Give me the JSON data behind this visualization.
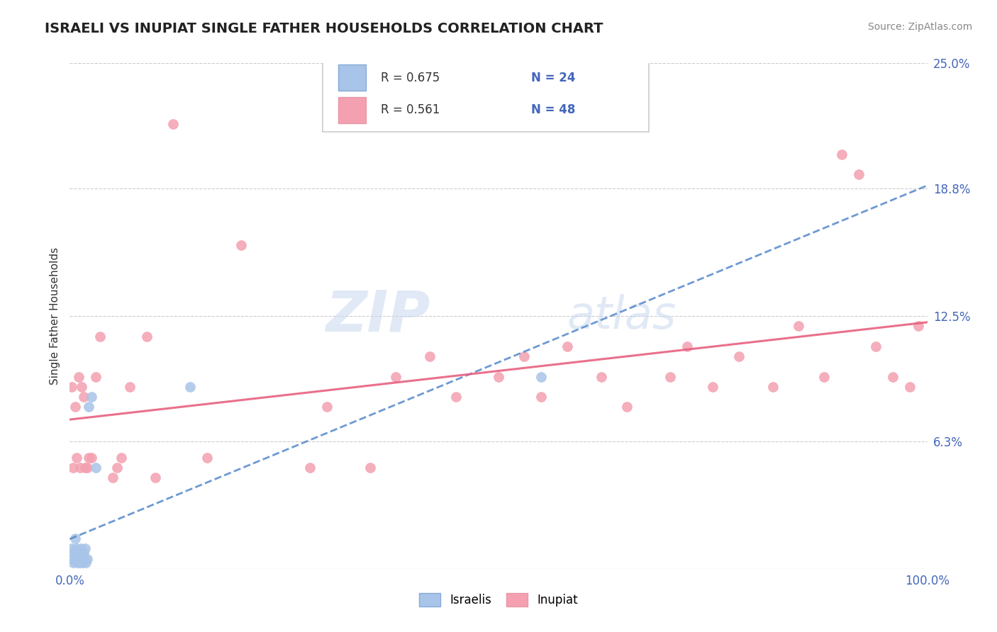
{
  "title": "ISRAELI VS INUPIAT SINGLE FATHER HOUSEHOLDS CORRELATION CHART",
  "source": "Source: ZipAtlas.com",
  "ylabel": "Single Father Households",
  "xlim": [
    0,
    100
  ],
  "ylim": [
    0,
    25
  ],
  "ytick_vals": [
    0,
    6.3,
    12.5,
    18.8,
    25.0
  ],
  "ytick_labels": [
    "",
    "6.3%",
    "12.5%",
    "18.8%",
    "25.0%"
  ],
  "xtick_vals": [
    0,
    100
  ],
  "xtick_labels": [
    "0.0%",
    "100.0%"
  ],
  "legend_israelis_label": "Israelis",
  "legend_inupiat_label": "Inupiat",
  "r_israeli": "R = 0.675",
  "n_israeli": "N = 24",
  "r_inupiat": "R = 0.561",
  "n_inupiat": "N = 48",
  "israeli_color": "#a8c4e8",
  "inupiat_color": "#f4a0b0",
  "israeli_line_color": "#5588cc",
  "inupiat_line_color": "#e86080",
  "watermark_zip": "ZIP",
  "watermark_atlas": "atlas",
  "background_color": "#ffffff",
  "israeli_x": [
    0.2,
    0.3,
    0.4,
    0.5,
    0.6,
    0.7,
    0.8,
    0.9,
    1.0,
    1.1,
    1.2,
    1.3,
    1.4,
    1.5,
    1.6,
    1.7,
    1.8,
    1.9,
    2.0,
    2.2,
    2.5,
    3.0,
    14.0,
    55.0
  ],
  "israeli_y": [
    1.0,
    0.5,
    0.3,
    0.8,
    1.5,
    0.5,
    1.0,
    0.3,
    0.5,
    0.8,
    0.3,
    1.0,
    0.5,
    0.3,
    0.8,
    0.5,
    1.0,
    0.3,
    0.5,
    8.0,
    8.5,
    5.0,
    9.0,
    9.5
  ],
  "inupiat_x": [
    0.2,
    0.4,
    0.6,
    0.8,
    1.0,
    1.2,
    1.4,
    1.6,
    1.8,
    2.0,
    2.2,
    2.5,
    3.0,
    3.5,
    5.0,
    5.5,
    6.0,
    7.0,
    9.0,
    10.0,
    12.0,
    16.0,
    20.0,
    28.0,
    30.0,
    35.0,
    38.0,
    42.0,
    45.0,
    50.0,
    53.0,
    55.0,
    58.0,
    62.0,
    65.0,
    70.0,
    72.0,
    75.0,
    78.0,
    82.0,
    85.0,
    88.0,
    90.0,
    92.0,
    94.0,
    96.0,
    98.0,
    99.0
  ],
  "inupiat_y": [
    9.0,
    5.0,
    8.0,
    5.5,
    9.5,
    5.0,
    9.0,
    8.5,
    5.0,
    5.0,
    5.5,
    5.5,
    9.5,
    11.5,
    4.5,
    5.0,
    5.5,
    9.0,
    11.5,
    4.5,
    22.0,
    5.5,
    16.0,
    5.0,
    8.0,
    5.0,
    9.5,
    10.5,
    8.5,
    9.5,
    10.5,
    8.5,
    11.0,
    9.5,
    8.0,
    9.5,
    11.0,
    9.0,
    10.5,
    9.0,
    12.0,
    9.5,
    20.5,
    19.5,
    11.0,
    9.5,
    9.0,
    12.0
  ]
}
